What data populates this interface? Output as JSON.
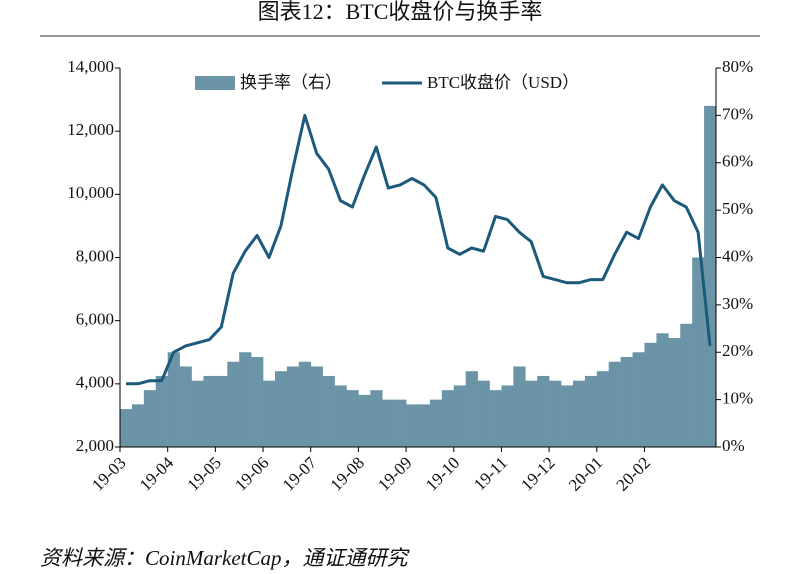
{
  "chart_data": {
    "type": "bar-line",
    "title": "图表12：BTC收盘价与换手率",
    "source": "资料来源：CoinMarketCap，通证通研究",
    "categories": [
      "19-03",
      null,
      null,
      null,
      "19-04",
      null,
      null,
      null,
      "19-05",
      null,
      null,
      null,
      "19-06",
      null,
      null,
      null,
      "19-07",
      null,
      null,
      null,
      "19-08",
      null,
      null,
      null,
      "19-09",
      null,
      null,
      null,
      "19-10",
      null,
      null,
      null,
      "19-11",
      null,
      null,
      null,
      "19-12",
      null,
      null,
      null,
      "20-01",
      null,
      null,
      null,
      "20-02",
      null,
      null,
      null,
      null,
      null
    ],
    "series": [
      {
        "name": "换手率（右）",
        "type": "bar",
        "axis": "y2",
        "color": "#6b95a7",
        "values": [
          8,
          9,
          12,
          15,
          20,
          17,
          14,
          15,
          15,
          18,
          20,
          19,
          14,
          16,
          17,
          18,
          17,
          15,
          13,
          12,
          11,
          12,
          10,
          10,
          9,
          9,
          10,
          12,
          13,
          16,
          14,
          12,
          13,
          17,
          14,
          15,
          14,
          13,
          14,
          15,
          16,
          18,
          19,
          20,
          22,
          24,
          23,
          26,
          40,
          72
        ]
      },
      {
        "name": "BTC收盘价（USD）",
        "type": "line",
        "color": "#1c5a7b",
        "values": [
          4000,
          4000,
          4100,
          4100,
          5000,
          5200,
          5300,
          5400,
          5800,
          7500,
          8200,
          8700,
          8000,
          9000,
          10800,
          12500,
          11300,
          10800,
          9800,
          9600,
          10600,
          11500,
          10200,
          10300,
          10500,
          10300,
          9900,
          8300,
          8100,
          8300,
          8200,
          9300,
          9200,
          8800,
          8500,
          7400,
          7300,
          7200,
          7200,
          7300,
          7300,
          8100,
          8800,
          8600,
          9600,
          10300,
          9800,
          9600,
          8800,
          5200
        ]
      }
    ],
    "ylim": [
      2000,
      14000
    ],
    "yticks": [
      {
        "value": 2000,
        "label": "2,000"
      },
      {
        "value": 4000,
        "label": "4,000"
      },
      {
        "value": 6000,
        "label": "6,000"
      },
      {
        "value": 8000,
        "label": "8,000"
      },
      {
        "value": 10000,
        "label": "10,000"
      },
      {
        "value": 12000,
        "label": "12,000"
      },
      {
        "value": 14000,
        "label": "14,000"
      }
    ],
    "y2lim": [
      0,
      80
    ],
    "y2ticks": [
      {
        "value": 0,
        "label": "0%"
      },
      {
        "value": 10,
        "label": "10%"
      },
      {
        "value": 20,
        "label": "20%"
      },
      {
        "value": 30,
        "label": "30%"
      },
      {
        "value": 40,
        "label": "40%"
      },
      {
        "value": 50,
        "label": "50%"
      },
      {
        "value": 60,
        "label": "60%"
      },
      {
        "value": 70,
        "label": "70%"
      },
      {
        "value": 80,
        "label": "80%"
      }
    ]
  }
}
